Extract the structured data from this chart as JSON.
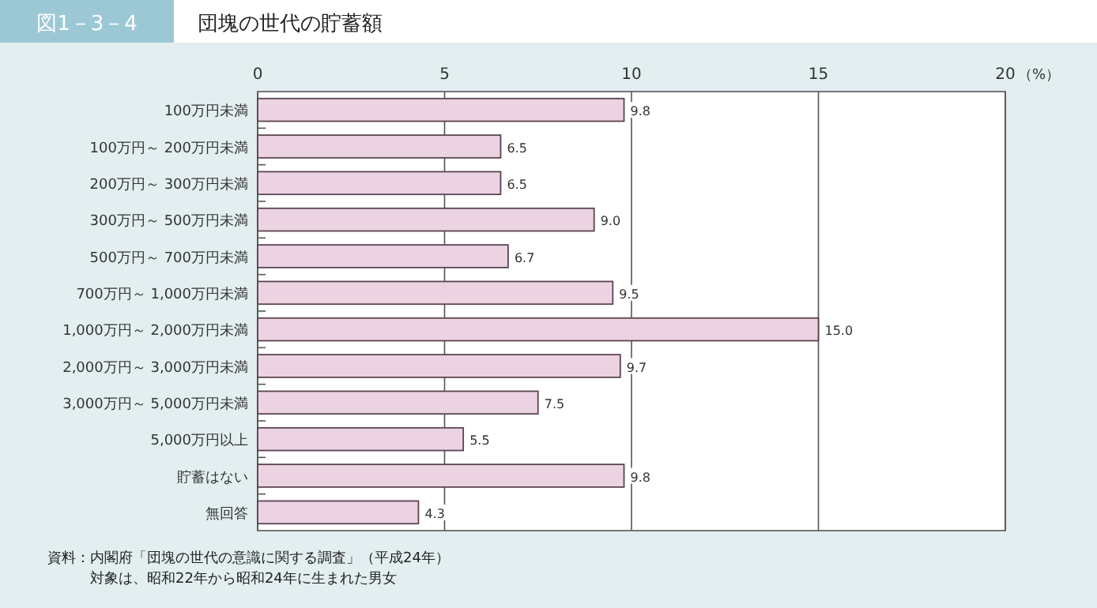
{
  "chart_data": {
    "type": "bar",
    "orientation": "horizontal",
    "subtitle": "図1－3－4",
    "title": "団塊の世代の貯蓄額",
    "xlabel": "（%）",
    "categories": [
      "100万円未満",
      "100万円～ 200万円未満",
      "200万円～ 300万円未満",
      "300万円～ 500万円未満",
      "500万円～ 700万円未満",
      "700万円～ 1,000万円未満",
      "1,000万円～ 2,000万円未満",
      "2,000万円～ 3,000万円未満",
      "3,000万円～ 5,000万円未満",
      "5,000万円以上",
      "貯蓄はない",
      "無回答"
    ],
    "values": [
      9.8,
      6.5,
      6.5,
      9.0,
      6.7,
      9.5,
      15.0,
      9.7,
      7.5,
      5.5,
      9.8,
      4.3
    ],
    "value_labels": [
      "9.8",
      "6.5",
      "6.5",
      "9.0",
      "6.7",
      "9.5",
      "15.0",
      "9.7",
      "7.5",
      "5.5",
      "9.8",
      "4.3"
    ],
    "color": "#ecd3e2",
    "xlim": [
      0,
      20
    ],
    "xticks": [
      0,
      5,
      10,
      15,
      20
    ],
    "grid": "x",
    "annotations": [
      "資料：内閣府「団塊の世代の意識に関する調査」（平成24年）",
      "対象は、昭和22年から昭和24年に生まれた男女"
    ]
  }
}
